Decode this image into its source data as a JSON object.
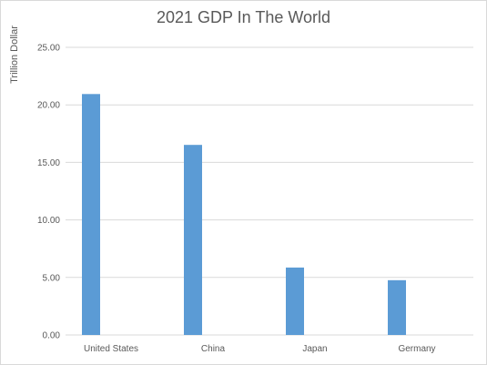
{
  "chart_data": {
    "type": "bar",
    "title": "2021 GDP In The World",
    "xlabel": "",
    "ylabel": "Trillion Dollar",
    "categories": [
      "United States",
      "China",
      "Japan",
      "Germany"
    ],
    "values": [
      20.94,
      16.52,
      5.86,
      4.76
    ],
    "ylim": [
      0,
      25
    ],
    "ytick_labels": [
      "0.00",
      "5.00",
      "10.00",
      "15.00",
      "20.00",
      "25.00"
    ],
    "grid": true,
    "legend": "none",
    "bar_color": "#5b9bd5"
  },
  "colors": {
    "gridline": "#d9d9d9",
    "text": "#595959",
    "border": "#d9d9d9"
  }
}
